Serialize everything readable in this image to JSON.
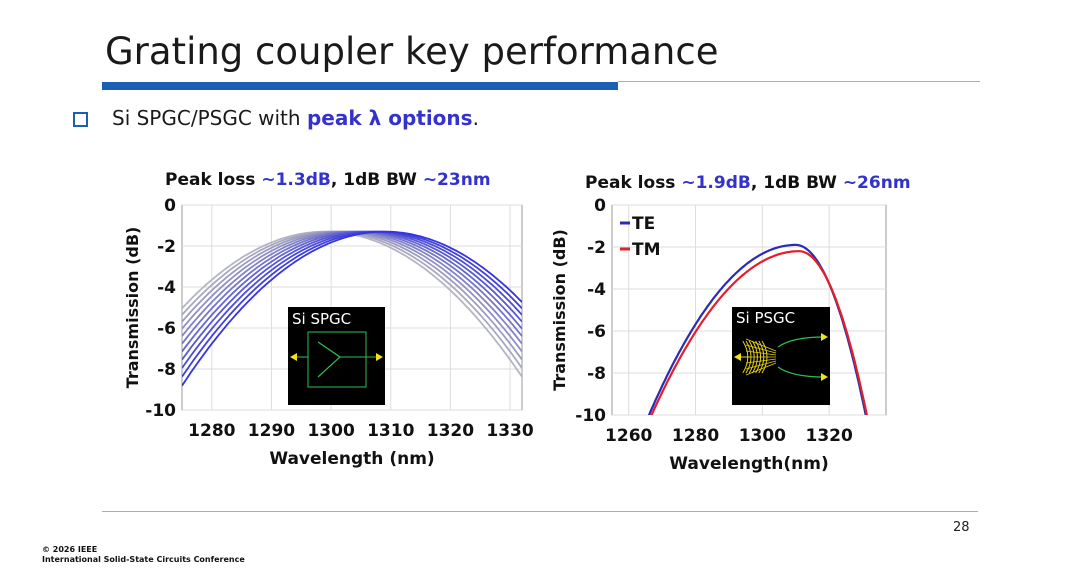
{
  "slide": {
    "title": "Grating coupler key performance",
    "bullet": {
      "prefix": "Si SPGC/PSGC with ",
      "highlight": "peak λ options",
      "suffix": "."
    },
    "page_number": "28",
    "footer_line1": "© 2026 IEEE",
    "footer_line2": "International Solid-State Circuits Conference"
  },
  "charts": {
    "left": {
      "title_parts": [
        "Peak loss ",
        "~1.3dB",
        ", 1dB BW ",
        "~23nm"
      ],
      "inset_label": "Si SPGC"
    },
    "right": {
      "title_parts": [
        "Peak loss ",
        "~1.9dB",
        ", 1dB BW ",
        "~26nm"
      ],
      "inset_label": "Si PSGC"
    }
  },
  "chart_data": [
    {
      "type": "line",
      "title": "Peak loss ~1.3dB, 1dB BW ~23nm",
      "xlabel": "Wavelength (nm)",
      "ylabel": "Transmission (dB)",
      "xlim": [
        1275,
        1332
      ],
      "ylim": [
        -10,
        0
      ],
      "xticks": [
        1280,
        1290,
        1300,
        1310,
        1320,
        1330
      ],
      "yticks": [
        0,
        -2,
        -4,
        -6,
        -8,
        -10
      ],
      "grid": true,
      "curve_model": "parabolic",
      "series": [
        {
          "peak_x": 1299,
          "peak_y": -1.3,
          "curvature": 0.0065,
          "color": "#b4b4c4"
        },
        {
          "peak_x": 1300,
          "peak_y": -1.3,
          "curvature": 0.0065,
          "color": "#a8a8c0"
        },
        {
          "peak_x": 1301,
          "peak_y": -1.3,
          "curvature": 0.0065,
          "color": "#9c9cc0"
        },
        {
          "peak_x": 1302,
          "peak_y": -1.3,
          "curvature": 0.0065,
          "color": "#9090c4"
        },
        {
          "peak_x": 1303,
          "peak_y": -1.3,
          "curvature": 0.0065,
          "color": "#8282c8"
        },
        {
          "peak_x": 1304,
          "peak_y": -1.3,
          "curvature": 0.0065,
          "color": "#7474cc"
        },
        {
          "peak_x": 1305,
          "peak_y": -1.3,
          "curvature": 0.0065,
          "color": "#6666d0"
        },
        {
          "peak_x": 1306,
          "peak_y": -1.3,
          "curvature": 0.0065,
          "color": "#5858d4"
        },
        {
          "peak_x": 1307,
          "peak_y": -1.3,
          "curvature": 0.0065,
          "color": "#4c4cd8"
        },
        {
          "peak_x": 1308,
          "peak_y": -1.3,
          "curvature": 0.0065,
          "color": "#4040dc"
        },
        {
          "peak_x": 1309,
          "peak_y": -1.3,
          "curvature": 0.0065,
          "color": "#3434e0"
        }
      ]
    },
    {
      "type": "line",
      "title": "Peak loss ~1.9dB, 1dB BW ~26nm",
      "xlabel": "Wavelength(nm)",
      "ylabel": "Transmission (dB)",
      "xlim": [
        1255,
        1337
      ],
      "ylim": [
        -10,
        0
      ],
      "xticks": [
        1260,
        1280,
        1300,
        1320
      ],
      "yticks": [
        0,
        -2,
        -4,
        -6,
        -8,
        -10
      ],
      "grid": true,
      "legend": "top-left",
      "curve_model": "skewed",
      "series": [
        {
          "name": "TE",
          "color": "#2b2bb5",
          "peak_x": 1310,
          "peak_y": -1.9,
          "left_curvature": 0.0042,
          "right_curvature": 0.0185,
          "x_start": 1266,
          "x_end": 1333
        },
        {
          "name": "TM",
          "color": "#e0202a",
          "peak_x": 1311,
          "peak_y": -2.2,
          "left_curvature": 0.004,
          "right_curvature": 0.019,
          "x_start": 1266,
          "x_end": 1333
        }
      ]
    }
  ]
}
